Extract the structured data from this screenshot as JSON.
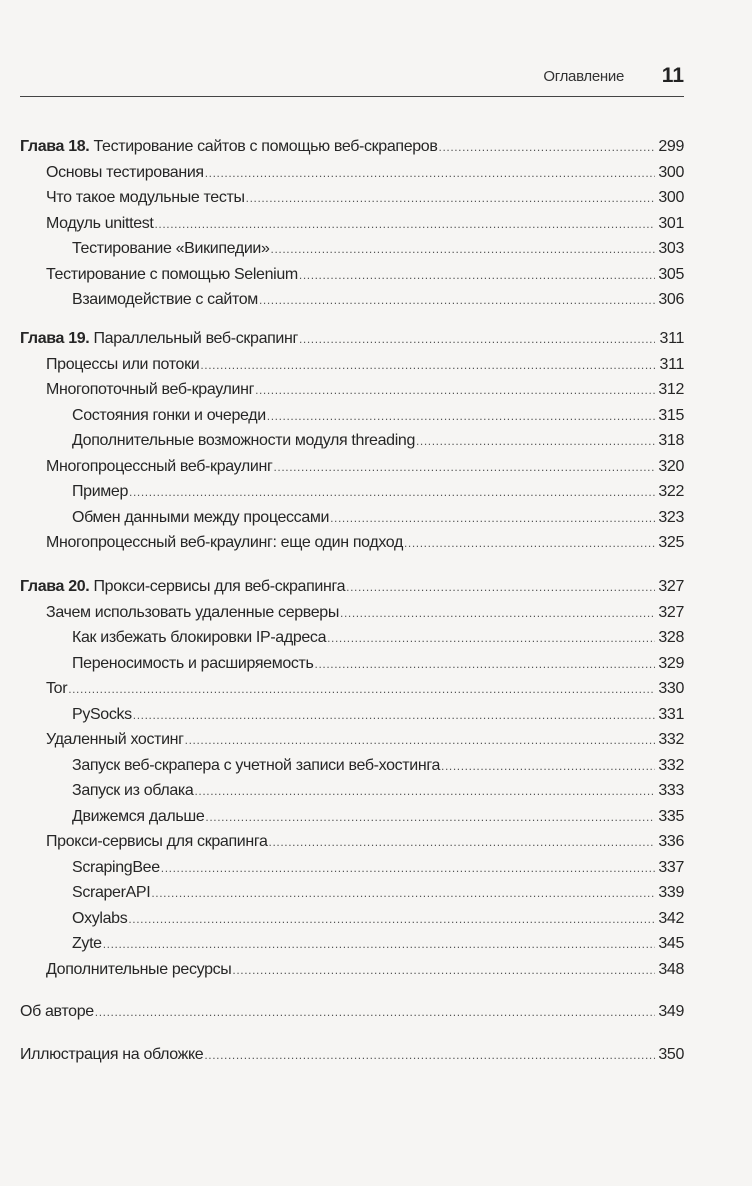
{
  "header": {
    "section_title": "Оглавление",
    "page_number": "11"
  },
  "groups": [
    {
      "entries": [
        {
          "level": 0,
          "prefix": "Глава 18.",
          "title": "Тестирование сайтов с помощью веб-скраперов",
          "page": "299"
        },
        {
          "level": 1,
          "title": "Основы тестирования",
          "page": "300"
        },
        {
          "level": 1,
          "title": "Что такое модульные тесты",
          "page": "300"
        },
        {
          "level": 1,
          "title": "Модуль unittest",
          "page": "301"
        },
        {
          "level": 2,
          "title": "Тестирование «Википедии»",
          "page": "303"
        },
        {
          "level": 1,
          "title": "Тестирование с помощью Selenium",
          "page": "305"
        },
        {
          "level": 2,
          "title": "Взаимодействие с сайтом",
          "page": "306"
        }
      ]
    },
    {
      "entries": [
        {
          "level": 0,
          "prefix": "Глава 19.",
          "title": "Параллельный веб-скрапинг",
          "page": "311"
        },
        {
          "level": 1,
          "title": "Процессы или потоки",
          "page": "311"
        },
        {
          "level": 1,
          "title": "Многопоточный веб-краулинг",
          "page": "312"
        },
        {
          "level": 2,
          "title": "Состояния гонки и очереди",
          "page": "315"
        },
        {
          "level": 2,
          "title": "Дополнительные возможности модуля threading",
          "page": "318"
        },
        {
          "level": 1,
          "title": "Многопроцессный веб-краулинг",
          "page": "320"
        },
        {
          "level": 2,
          "title": "Пример",
          "page": "322"
        },
        {
          "level": 2,
          "title": "Обмен данными между процессами",
          "page": "323"
        },
        {
          "level": 1,
          "title": "Многопроцессный веб-краулинг: еще один подход",
          "page": "325"
        }
      ]
    },
    {
      "entries": [
        {
          "level": 0,
          "prefix": "Глава 20.",
          "title": "Прокси-сервисы для веб-скрапинга",
          "page": "327"
        },
        {
          "level": 1,
          "title": "Зачем использовать удаленные серверы",
          "page": "327"
        },
        {
          "level": 2,
          "title": "Как избежать блокировки IP-адреса",
          "page": "328"
        },
        {
          "level": 2,
          "title": "Переносимость и расширяемость",
          "page": "329"
        },
        {
          "level": 1,
          "title": "Tor",
          "page": "330"
        },
        {
          "level": 2,
          "title": "PySocks",
          "page": "331"
        },
        {
          "level": 1,
          "title": "Удаленный хостинг",
          "page": "332"
        },
        {
          "level": 2,
          "title": "Запуск веб-скрапера с учетной записи веб-хостинга",
          "page": "332"
        },
        {
          "level": 2,
          "title": "Запуск из облака",
          "page": "333"
        },
        {
          "level": 2,
          "title": "Движемся дальше",
          "page": "335"
        },
        {
          "level": 1,
          "title": "Прокси-сервисы для скрапинга",
          "page": "336"
        },
        {
          "level": 2,
          "title": "ScrapingBee",
          "page": "337"
        },
        {
          "level": 2,
          "title": "ScraperAPI",
          "page": "339"
        },
        {
          "level": 2,
          "title": "Oxylabs",
          "page": "342"
        },
        {
          "level": 2,
          "title": "Zyte",
          "page": "345"
        },
        {
          "level": 1,
          "title": "Дополнительные ресурсы",
          "page": "348"
        }
      ]
    },
    {
      "entries": [
        {
          "level": 0,
          "title": "Об авторе",
          "page": "349"
        }
      ]
    },
    {
      "entries": [
        {
          "level": 0,
          "title": "Иллюстрация на обложке",
          "page": "350"
        }
      ]
    }
  ]
}
